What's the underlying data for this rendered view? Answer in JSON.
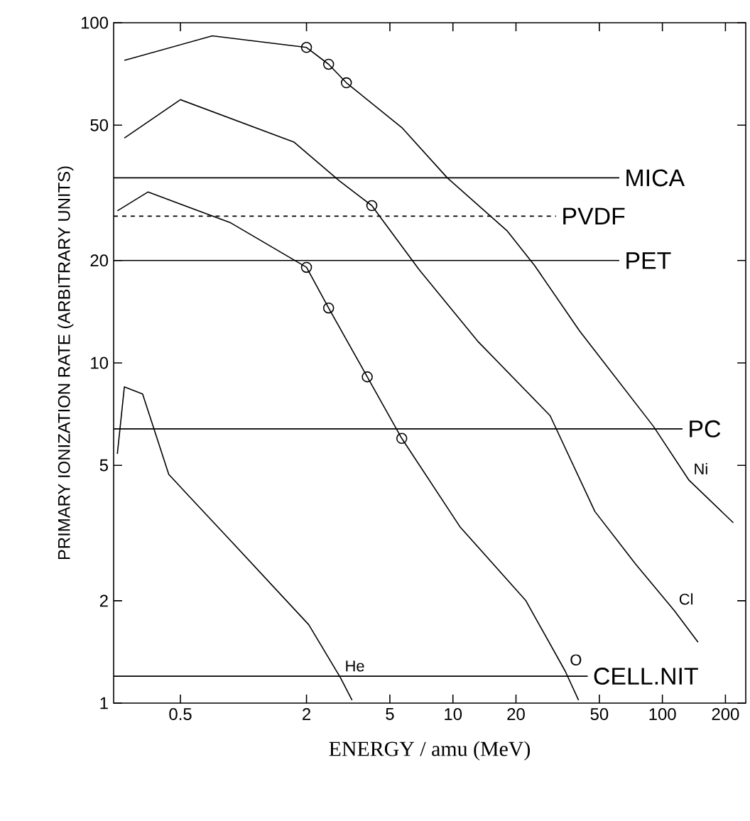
{
  "chart_data": {
    "type": "line",
    "xlabel": "ENERGY / amu (MeV)",
    "ylabel": "PRIMARY IONIZATION RATE (ARBITRARY UNITS)",
    "log": "xy",
    "xlim": [
      0.24,
      250
    ],
    "ylim": [
      1,
      100
    ],
    "xticks": [
      0.5,
      2,
      5,
      10,
      20,
      50,
      100,
      200
    ],
    "yticks": [
      1,
      2,
      5,
      10,
      20,
      50,
      100
    ],
    "series": [
      {
        "name": "He",
        "color": "#000000",
        "marker": "none",
        "x": [
          0.25,
          0.27,
          0.33,
          0.44,
          0.87,
          2.05,
          2.9,
          3.3
        ],
        "values": [
          5.4,
          8.5,
          8.1,
          4.7,
          3.0,
          1.7,
          1.19,
          1.02
        ]
      },
      {
        "name": "O",
        "color": "#000000",
        "marker": "none",
        "x": [
          0.25,
          0.35,
          0.87,
          2.0,
          2.55,
          3.9,
          5.7,
          10.8,
          22.3,
          34.4,
          39.8
        ],
        "values": [
          28,
          31.8,
          25.8,
          19.1,
          14.5,
          9.1,
          6.0,
          3.3,
          2.0,
          1.24,
          1.02
        ]
      },
      {
        "name": "Cl",
        "color": "#000000",
        "marker": "none",
        "x": [
          0.27,
          0.5,
          1.74,
          2.87,
          4.1,
          6.9,
          13.1,
          29.1,
          47.6,
          74.6,
          114,
          148
        ],
        "values": [
          45.8,
          59.4,
          44.6,
          34.3,
          29,
          18.8,
          11.6,
          7.0,
          3.66,
          2.56,
          1.87,
          1.51
        ]
      },
      {
        "name": "Ni",
        "color": "#000000",
        "marker": "none",
        "x": [
          0.27,
          0.71,
          2.0,
          2.55,
          3.1,
          5.7,
          9.4,
          18.2,
          24.6,
          40.3,
          90.8,
          134,
          218
        ],
        "values": [
          77.5,
          91.5,
          84.6,
          75.5,
          66.6,
          49.2,
          35.0,
          24.4,
          19.3,
          12.4,
          6.5,
          4.52,
          3.39
        ]
      },
      {
        "type": "scatter",
        "color": "#000000",
        "marker": "circle",
        "x": [
          2.0,
          2.55,
          3.9,
          5.7
        ],
        "values": [
          19.1,
          14.5,
          9.1,
          6.0
        ]
      },
      {
        "type": "scatter",
        "color": "#000000",
        "marker": "circle",
        "x": [
          4.1
        ],
        "values": [
          29
        ]
      },
      {
        "type": "scatter",
        "color": "#000000",
        "marker": "circle",
        "x": [
          2.0,
          2.55,
          3.1
        ],
        "values": [
          84.6,
          75.5,
          66.6
        ]
      }
    ],
    "ref_lines": [
      {
        "axis": "y",
        "value": 35,
        "label": "MICA",
        "color": "#000000"
      },
      {
        "axis": "y",
        "value": 27,
        "label": "PVDF",
        "color": "#000000",
        "line_style": "dashed"
      },
      {
        "axis": "y",
        "value": 20,
        "label": "PET",
        "color": "#000000"
      },
      {
        "axis": "y",
        "value": 6.4,
        "label": "PC",
        "color": "#000000"
      },
      {
        "axis": "y",
        "value": 1.2,
        "label": "CELL.NIT",
        "color": "#000000"
      }
    ]
  }
}
